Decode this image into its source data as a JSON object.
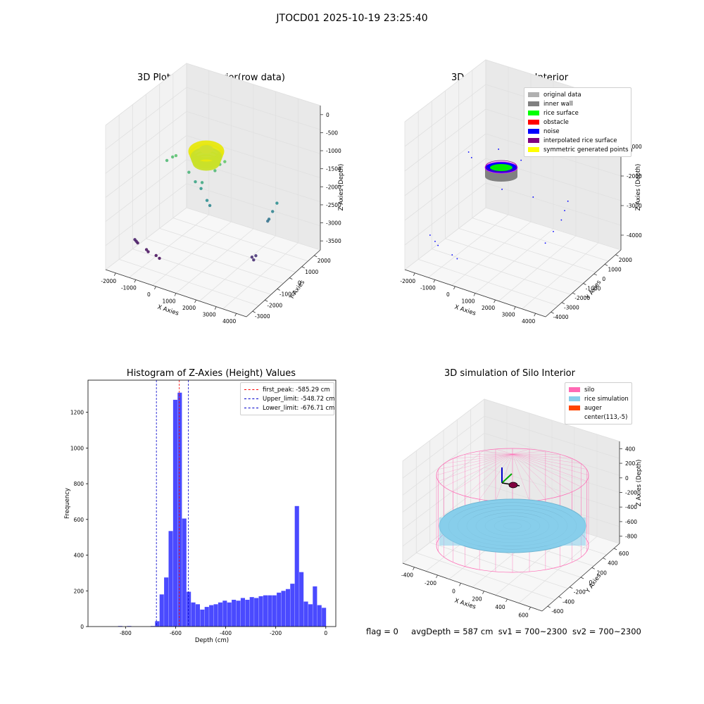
{
  "figure": {
    "suptitle": "JTOCD01 2025-10-19 23:25:40",
    "footer": {
      "flag": "flag = 0",
      "avg": "avgDepth = 587 cm",
      "sv1": "sv1 = 700~2300",
      "sv2": "sv2 = 700~2300"
    }
  },
  "chart_data": [
    {
      "type": "scatter",
      "subtype": "3d",
      "title": "3D Plot of Silo Interior(row data)",
      "xlabel": "X Axies",
      "ylabel": "Y Axies",
      "zlabel": "Z Axies (Depth)",
      "x_ticks": [
        "-2000",
        "-1000",
        "0",
        "1000",
        "2000",
        "3000",
        "4000"
      ],
      "y_ticks": [
        "-3000",
        "-2000",
        "-1000",
        "0",
        "1000",
        "2000"
      ],
      "z_ticks": [
        "0",
        "-500",
        "-1000",
        "-1500",
        "-2000",
        "-2500",
        "-3000",
        "-3500"
      ],
      "xlim": [
        -2300,
        4500
      ],
      "ylim": [
        -3500,
        2300
      ],
      "zlim": [
        -3900,
        300
      ],
      "colormap": "viridis",
      "points": [
        {
          "x": -2000,
          "y": -500,
          "z": -3600
        },
        {
          "x": -1950,
          "y": -450,
          "z": -3650
        },
        {
          "x": -1900,
          "y": -400,
          "z": -3700
        },
        {
          "x": -1400,
          "y": -600,
          "z": -3750
        },
        {
          "x": -1300,
          "y": -650,
          "z": -3780
        },
        {
          "x": -900,
          "y": -700,
          "z": -3800
        },
        {
          "x": -700,
          "y": -800,
          "z": -3820
        },
        {
          "x": 3100,
          "y": 1000,
          "z": -3400
        },
        {
          "x": 3200,
          "y": 950,
          "z": -3450
        },
        {
          "x": 3250,
          "y": 1100,
          "z": -3350
        },
        {
          "x": 3900,
          "y": 2100,
          "z": -1900
        },
        {
          "x": 3800,
          "y": 1800,
          "z": -2100
        },
        {
          "x": 3700,
          "y": 1600,
          "z": -2300
        },
        {
          "x": 3600,
          "y": 1700,
          "z": -2400
        },
        {
          "x": 500,
          "y": -200,
          "z": -1200
        },
        {
          "x": 700,
          "y": 100,
          "z": -1500
        },
        {
          "x": 900,
          "y": 300,
          "z": -1700
        },
        {
          "x": 1100,
          "y": -100,
          "z": -1400
        },
        {
          "x": 1500,
          "y": 500,
          "z": -1100
        },
        {
          "x": 1700,
          "y": 600,
          "z": -900
        },
        {
          "x": 1900,
          "y": 700,
          "z": -800
        },
        {
          "x": -600,
          "y": -100,
          "z": -1100
        },
        {
          "x": -400,
          "y": 100,
          "z": -1000
        },
        {
          "x": -200,
          "y": 0,
          "z": -900
        },
        {
          "x": 1300,
          "y": 0,
          "z": -1900
        },
        {
          "x": 1400,
          "y": 100,
          "z": -2050
        }
      ]
    },
    {
      "type": "scatter",
      "subtype": "3d",
      "title": "3D classify of Silo Interior",
      "xlabel": "X Axies",
      "ylabel": "Y Axies",
      "zlabel": "Z Axies (Depth)",
      "x_ticks": [
        "-2000",
        "-1000",
        "0",
        "1000",
        "2000",
        "3000",
        "4000"
      ],
      "y_ticks": [
        "-4000",
        "-3000",
        "-2000",
        "-1000",
        "0",
        "1000",
        "2000"
      ],
      "z_ticks": [
        "0",
        "-1000",
        "-2000",
        "-3000",
        "-4000"
      ],
      "z_partial_tick": "00",
      "legend": {
        "items": [
          {
            "label": "original data",
            "color": "#b0b0b0"
          },
          {
            "label": "inner wall",
            "color": "#808080"
          },
          {
            "label": "rice surface",
            "color": "#00ff00"
          },
          {
            "label": "obstacle",
            "color": "#ff0000"
          },
          {
            "label": "noise",
            "color": "#0000ff"
          },
          {
            "label": "interpolated rice surface",
            "color": "#800080"
          },
          {
            "label": "symmetric generated points",
            "color": "#ffff00"
          }
        ]
      },
      "noise_points": [
        {
          "x": -2100,
          "y": -1000,
          "z": -4200
        },
        {
          "x": -1800,
          "y": -1200,
          "z": -4300
        },
        {
          "x": -1600,
          "y": -1400,
          "z": -4350
        },
        {
          "x": -800,
          "y": -1800,
          "z": -4400
        },
        {
          "x": -500,
          "y": -2000,
          "z": -4420
        },
        {
          "x": 3800,
          "y": 1600,
          "z": -2200
        },
        {
          "x": 3700,
          "y": 1400,
          "z": -2500
        },
        {
          "x": 3600,
          "y": 1200,
          "z": -2800
        },
        {
          "x": 3000,
          "y": 600,
          "z": -3600
        },
        {
          "x": 3300,
          "y": 900,
          "z": -3200
        },
        {
          "x": 1400,
          "y": 200,
          "z": -1600
        },
        {
          "x": 1600,
          "y": 400,
          "z": -1300
        },
        {
          "x": 1800,
          "y": 700,
          "z": -1100
        },
        {
          "x": 1100,
          "y": 0,
          "z": -1800
        },
        {
          "x": 900,
          "y": -200,
          "z": -1400
        },
        {
          "x": -500,
          "y": -100,
          "z": -1200
        },
        {
          "x": -300,
          "y": -300,
          "z": -1300
        },
        {
          "x": 1200,
          "y": -400,
          "z": -2000
        },
        {
          "x": 2500,
          "y": 300,
          "z": -2100
        },
        {
          "x": 800,
          "y": 400,
          "z": -900
        }
      ]
    },
    {
      "type": "bar",
      "subtype": "histogram",
      "title": "Histogram of Z-Axies (Height) Values",
      "xlabel": "Depth (cm)",
      "ylabel": "Frequency",
      "xlim": [
        -950,
        40
      ],
      "ylim": [
        0,
        1380
      ],
      "x_ticks": [
        -800,
        -600,
        -400,
        -200,
        0
      ],
      "y_ticks": [
        0,
        200,
        400,
        600,
        800,
        1000,
        1200
      ],
      "bin_width": 18,
      "bars": [
        {
          "x0": -830,
          "v": 3
        },
        {
          "x0": -794,
          "v": 3
        },
        {
          "x0": -700,
          "v": 3
        },
        {
          "x0": -682,
          "v": 30
        },
        {
          "x0": -664,
          "v": 180
        },
        {
          "x0": -646,
          "v": 275
        },
        {
          "x0": -628,
          "v": 535
        },
        {
          "x0": -610,
          "v": 1270
        },
        {
          "x0": -592,
          "v": 1310
        },
        {
          "x0": -574,
          "v": 605
        },
        {
          "x0": -556,
          "v": 195
        },
        {
          "x0": -538,
          "v": 135
        },
        {
          "x0": -520,
          "v": 125
        },
        {
          "x0": -502,
          "v": 95
        },
        {
          "x0": -484,
          "v": 110
        },
        {
          "x0": -466,
          "v": 120
        },
        {
          "x0": -448,
          "v": 125
        },
        {
          "x0": -430,
          "v": 135
        },
        {
          "x0": -412,
          "v": 145
        },
        {
          "x0": -394,
          "v": 135
        },
        {
          "x0": -376,
          "v": 150
        },
        {
          "x0": -358,
          "v": 145
        },
        {
          "x0": -340,
          "v": 160
        },
        {
          "x0": -322,
          "v": 150
        },
        {
          "x0": -304,
          "v": 165
        },
        {
          "x0": -286,
          "v": 160
        },
        {
          "x0": -268,
          "v": 170
        },
        {
          "x0": -250,
          "v": 175
        },
        {
          "x0": -232,
          "v": 175
        },
        {
          "x0": -214,
          "v": 175
        },
        {
          "x0": -196,
          "v": 190
        },
        {
          "x0": -178,
          "v": 200
        },
        {
          "x0": -160,
          "v": 210
        },
        {
          "x0": -142,
          "v": 240
        },
        {
          "x0": -124,
          "v": 675
        },
        {
          "x0": -106,
          "v": 305
        },
        {
          "x0": -88,
          "v": 140
        },
        {
          "x0": -70,
          "v": 125
        },
        {
          "x0": -52,
          "v": 225
        },
        {
          "x0": -34,
          "v": 120
        },
        {
          "x0": -16,
          "v": 105
        }
      ],
      "bar_color": "#4a4aff",
      "vlines": [
        {
          "label": "first_peak: -585.29 cm",
          "value": -585.29,
          "color": "#ff0000"
        },
        {
          "label": "Upper_limit: -548.72 cm",
          "value": -548.72,
          "color": "#0000cc"
        },
        {
          "label": "Lower_limit: -676.71 cm",
          "value": -676.71,
          "color": "#0000cc"
        }
      ]
    },
    {
      "type": "scatter",
      "subtype": "3d-surface",
      "title": "3D simulation of Silo Interior",
      "xlabel": "X Axies",
      "ylabel": "Y Axies",
      "zlabel": "Z Axies (Depth)",
      "x_ticks": [
        "-400",
        "-200",
        "0",
        "200",
        "400",
        "600"
      ],
      "y_ticks": [
        "-600",
        "-400",
        "-200",
        "0",
        "200",
        "400",
        "600"
      ],
      "z_ticks": [
        "400",
        "200",
        "0",
        "-200",
        "-400",
        "-600",
        "-800"
      ],
      "legend": {
        "items": [
          {
            "label": "silo",
            "color": "#ff69b4"
          },
          {
            "label": "rice simulation",
            "color": "#87ceeb"
          },
          {
            "label": "auger",
            "color": "#ff4500"
          },
          {
            "label": "center(113,-5)",
            "color": "#ffffff"
          }
        ]
      }
    }
  ]
}
